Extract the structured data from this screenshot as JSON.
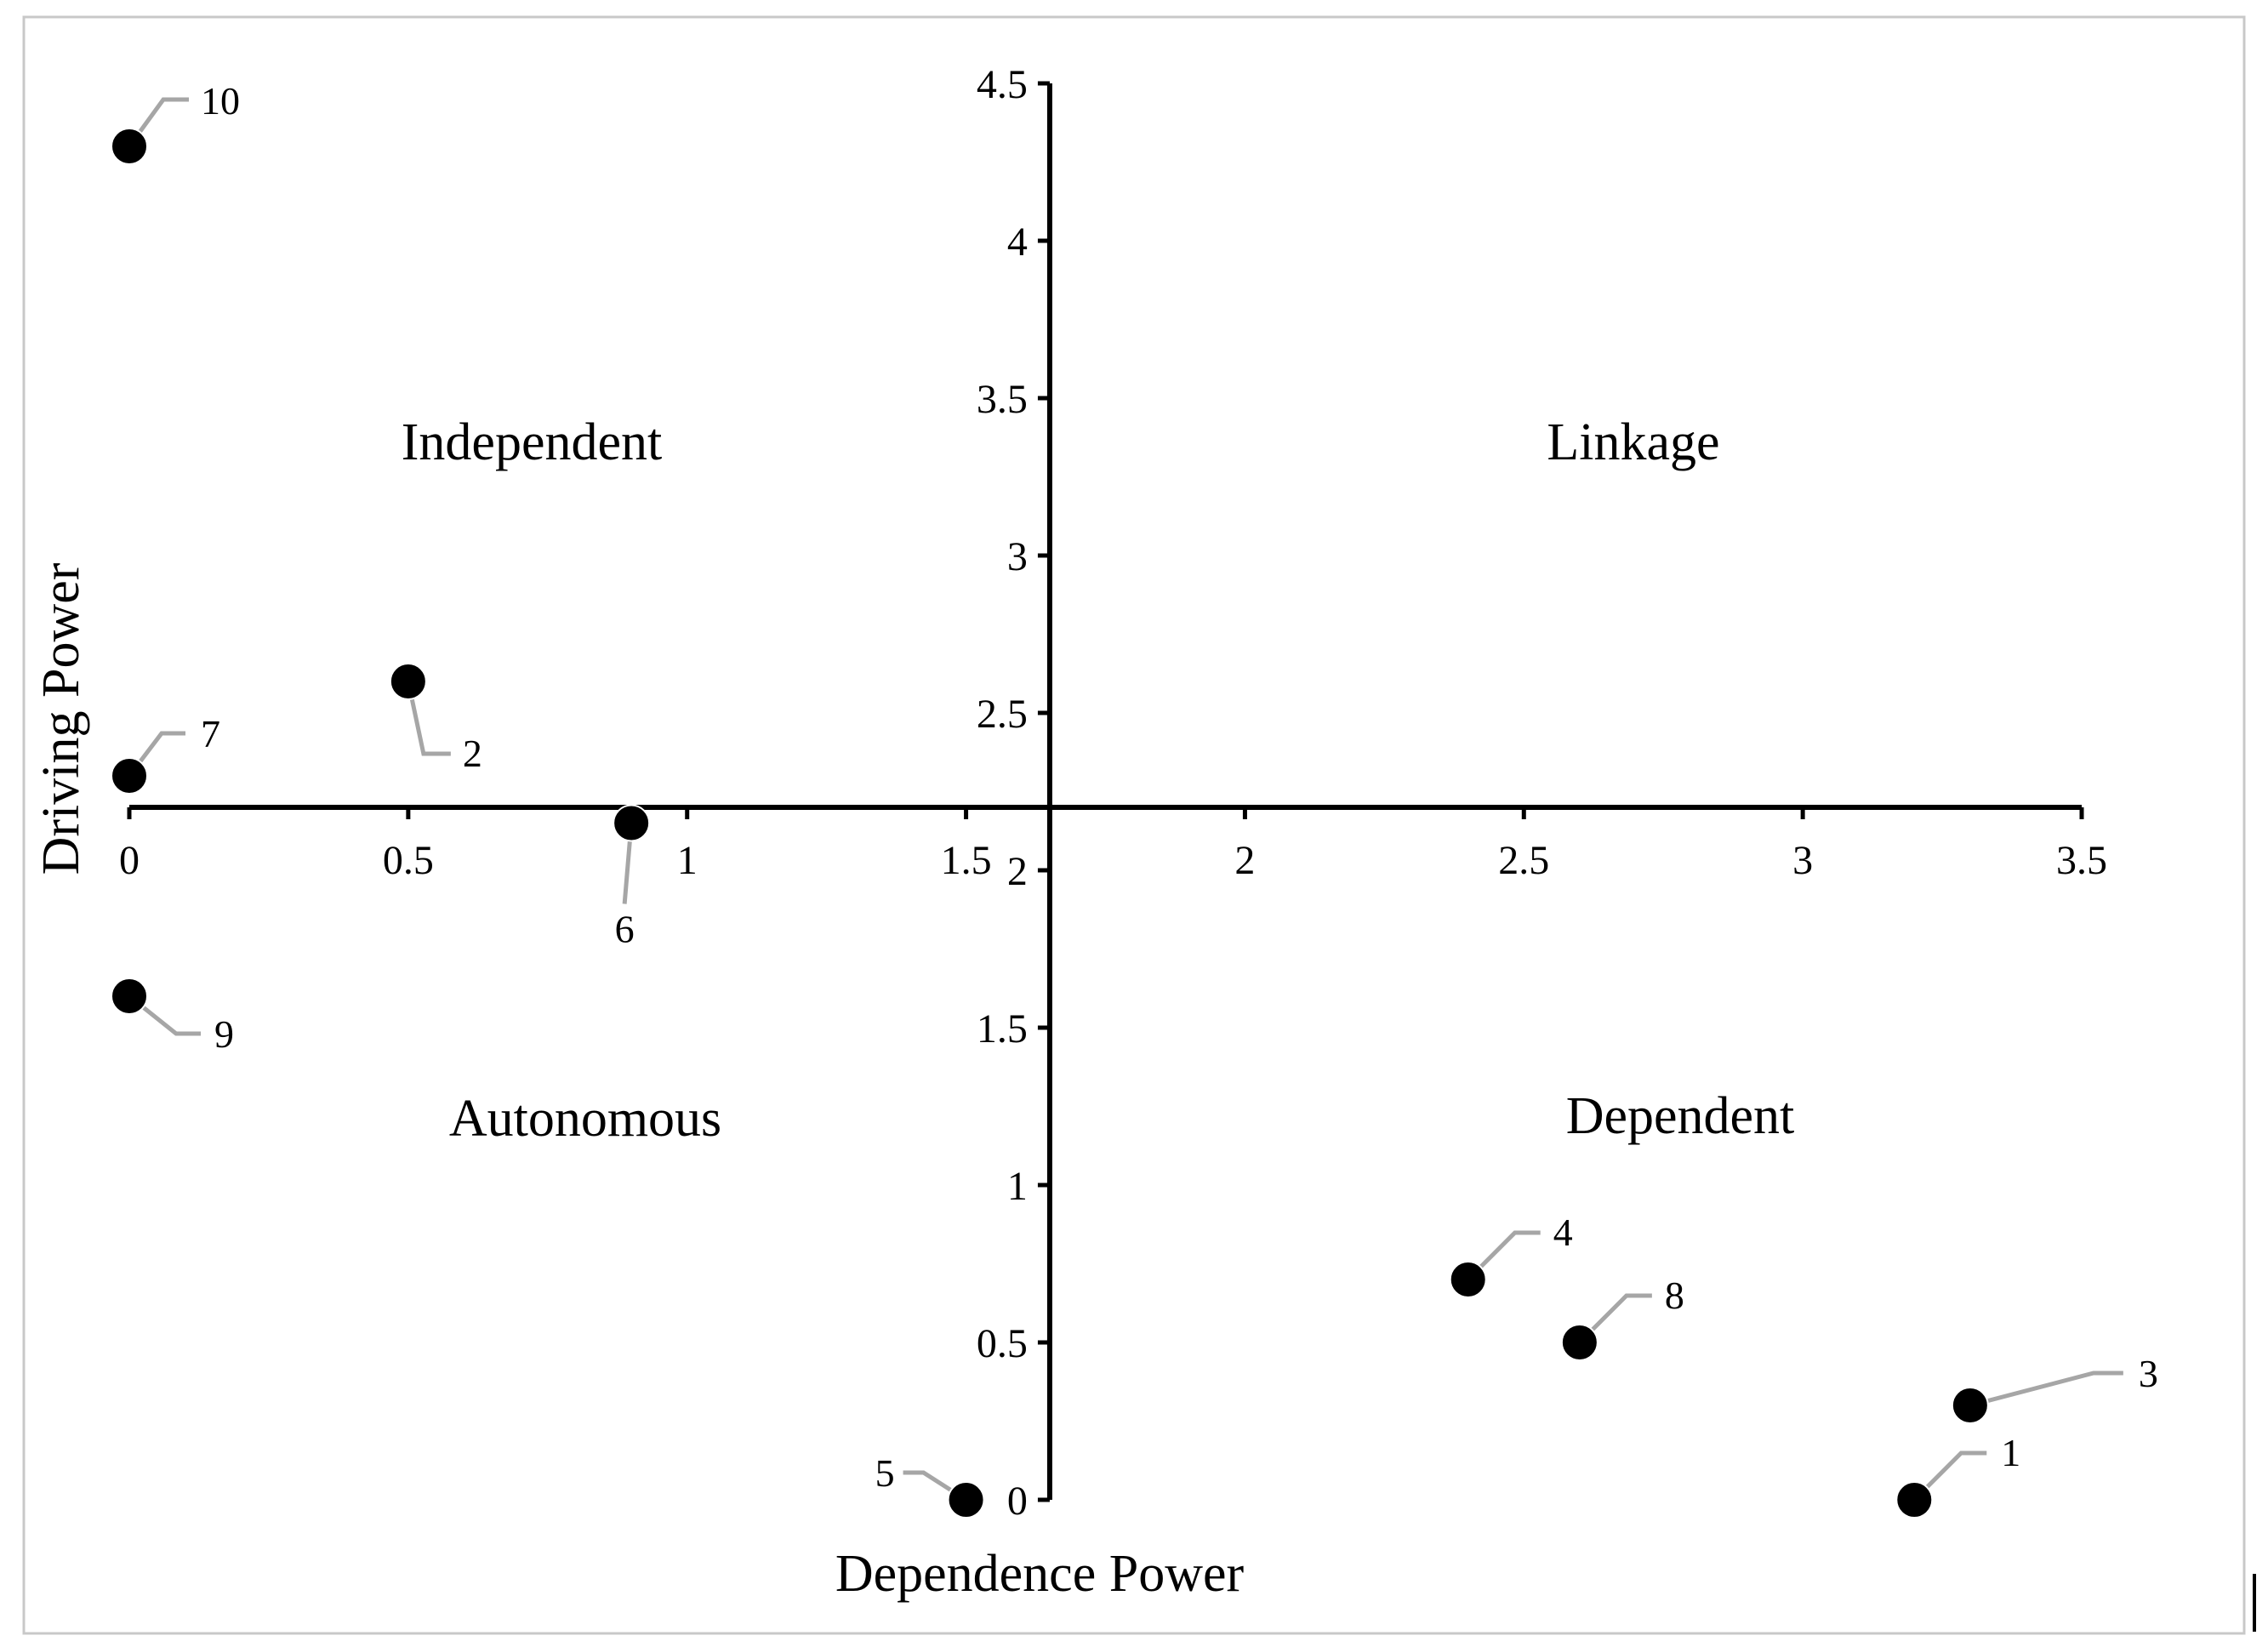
{
  "chart_data": {
    "type": "scatter",
    "title": "",
    "xlabel": "Dependence Power",
    "ylabel": "Driving Power",
    "xlim": [
      0,
      3.5
    ],
    "ylim": [
      0,
      4.5
    ],
    "x_axis_crosses_y_at": 2.2,
    "y_axis_crosses_x_at": 1.65,
    "xticks": [
      0,
      0.5,
      1,
      1.5,
      2,
      2.5,
      3,
      3.5
    ],
    "yticks": [
      0,
      0.5,
      1,
      1.5,
      2,
      2.5,
      3,
      3.5,
      4,
      4.5
    ],
    "xtick_labels": [
      "0",
      "0.5",
      "1",
      "1.5",
      "2",
      "2.5",
      "3",
      "3.5"
    ],
    "ytick_labels": [
      "0",
      "0.5",
      "1",
      "1.5",
      "2",
      "2.5",
      "3",
      "3.5",
      "4",
      "4.5"
    ],
    "grid": false,
    "quadrants": [
      {
        "label": "Independent",
        "position": "top-left"
      },
      {
        "label": "Linkage",
        "position": "top-right"
      },
      {
        "label": "Autonomous",
        "position": "bottom-left"
      },
      {
        "label": "Dependent",
        "position": "bottom-right"
      }
    ],
    "points": [
      {
        "label": "1",
        "x": 3.2,
        "y": 0
      },
      {
        "label": "2",
        "x": 0.5,
        "y": 2.6
      },
      {
        "label": "3",
        "x": 3.3,
        "y": 0.3
      },
      {
        "label": "4",
        "x": 2.4,
        "y": 0.7
      },
      {
        "label": "5",
        "x": 1.5,
        "y": 0
      },
      {
        "label": "6",
        "x": 0.9,
        "y": 2.15
      },
      {
        "label": "7",
        "x": 0,
        "y": 2.3
      },
      {
        "label": "8",
        "x": 2.6,
        "y": 0.5
      },
      {
        "label": "9",
        "x": 0,
        "y": 1.6
      },
      {
        "label": "10",
        "x": 0,
        "y": 4.3
      }
    ]
  }
}
